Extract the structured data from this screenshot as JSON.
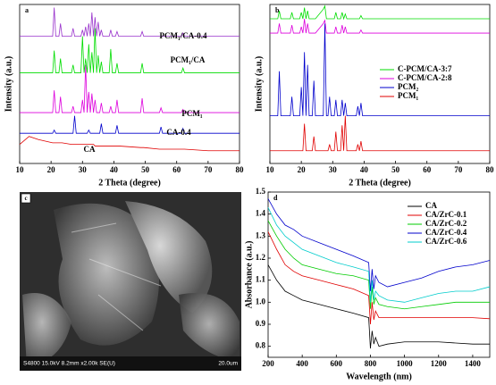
{
  "chart_data": [
    {
      "type": "line",
      "panel": "a",
      "x_label": "2 Theta (degree)",
      "y_label": "Intensity (a.u.)",
      "xlim": [
        10,
        80
      ],
      "xticks": [
        10,
        20,
        30,
        40,
        50,
        60,
        70,
        80
      ],
      "ylim": [
        0,
        100
      ],
      "x": [
        10,
        13,
        16,
        20.5,
        21,
        21.5,
        22.5,
        23,
        23.5,
        26.5,
        27,
        27.5,
        28,
        29.5,
        30,
        30.5,
        31,
        31.5,
        32,
        32.5,
        33,
        33.5,
        34,
        34.5,
        35,
        35.5,
        36,
        36.5,
        38.5,
        39,
        39.5,
        40.5,
        41,
        41.5,
        48.5,
        49,
        49.5,
        54.5,
        55,
        55.5,
        61.5,
        62,
        62.5,
        70,
        80
      ],
      "series": [
        {
          "name": "CA",
          "color": "#e00000",
          "values": [
            12,
            17,
            15,
            13,
            13,
            13,
            13,
            13,
            13,
            12,
            12,
            12,
            12,
            12,
            12,
            12,
            12,
            12,
            12,
            12,
            12,
            12,
            11,
            11,
            11,
            11,
            11,
            11,
            11,
            11,
            11,
            11,
            11,
            11,
            10,
            10,
            10,
            9,
            9,
            9,
            9,
            9,
            9,
            8,
            8
          ]
        },
        {
          "name": "CA-0.4",
          "color": "#0000cc",
          "values": [
            19,
            19,
            19,
            19,
            21,
            19,
            19,
            19,
            19,
            19,
            19,
            30,
            19,
            19,
            19,
            19,
            19,
            19,
            21,
            19,
            19,
            19,
            19,
            19,
            19,
            19,
            25,
            19,
            19,
            19,
            19,
            19,
            24,
            19,
            19,
            19,
            19,
            19,
            23,
            19,
            19,
            22,
            19,
            19,
            19
          ]
        },
        {
          "name": "PCM₁",
          "color": "#dd00dd",
          "values": [
            32,
            32,
            32,
            32,
            46,
            32,
            32,
            42,
            32,
            32,
            36,
            32,
            32,
            32,
            40,
            32,
            62,
            32,
            45,
            32,
            44,
            32,
            40,
            32,
            32,
            32,
            38,
            32,
            32,
            36,
            32,
            32,
            40,
            32,
            32,
            41,
            32,
            32,
            35,
            32,
            32,
            34,
            32,
            32,
            32
          ]
        },
        {
          "name": "PCM₁/CA",
          "color": "#00dd00",
          "values": [
            57,
            57,
            57,
            57,
            71,
            57,
            57,
            66,
            57,
            57,
            62,
            57,
            57,
            57,
            80,
            57,
            66,
            57,
            75,
            57,
            70,
            57,
            85,
            57,
            68,
            57,
            64,
            57,
            57,
            72,
            57,
            57,
            63,
            57,
            57,
            63,
            57,
            57,
            57,
            57,
            57,
            60,
            57,
            57,
            57
          ]
        },
        {
          "name": "PCM₁/CA-0.4",
          "color": "#9933cc",
          "values": [
            80,
            80,
            80,
            80,
            98,
            80,
            80,
            88,
            80,
            80,
            85,
            80,
            80,
            80,
            84,
            80,
            86,
            80,
            88,
            80,
            95,
            80,
            92,
            80,
            89,
            80,
            84,
            80,
            80,
            84,
            80,
            80,
            83,
            80,
            80,
            83,
            80,
            80,
            80,
            80,
            80,
            82,
            80,
            80,
            80
          ]
        }
      ]
    },
    {
      "type": "line",
      "panel": "b",
      "x_label": "2 Theta (degree)",
      "y_label": "Intensity (a.u.)",
      "xlim": [
        10,
        80
      ],
      "xticks": [
        10,
        20,
        30,
        40,
        50,
        60,
        70,
        80
      ],
      "ylim": [
        0,
        100
      ],
      "x": [
        10,
        12.5,
        13,
        13.5,
        16.5,
        17,
        17.5,
        19.5,
        20,
        20.5,
        21,
        21.5,
        22,
        22.5,
        23.5,
        24,
        24.5,
        27,
        27.5,
        28,
        28.5,
        29,
        29.5,
        30.5,
        31,
        31.5,
        32.5,
        33,
        33.5,
        34,
        34.5,
        37.5,
        38,
        38.5,
        39,
        39.5,
        50,
        60,
        70,
        80
      ],
      "series": [
        {
          "name": "C-PCM/CA-3:7",
          "color": "#00dd00",
          "values": [
            91,
            91,
            96,
            91,
            91,
            95,
            91,
            91,
            95,
            91,
            98,
            91,
            96,
            91,
            91,
            91,
            91,
            97,
            99,
            91,
            91,
            91,
            91,
            91,
            95,
            91,
            91,
            95,
            91,
            94,
            91,
            91,
            91,
            91,
            93,
            91,
            91,
            91,
            91,
            91
          ]
        },
        {
          "name": "C-PCM/CA-2:8",
          "color": "#dd00dd",
          "values": [
            82,
            82,
            88,
            82,
            82,
            87,
            82,
            82,
            86,
            82,
            91,
            82,
            88,
            82,
            82,
            82,
            82,
            88,
            90,
            82,
            82,
            82,
            82,
            82,
            86,
            82,
            82,
            87,
            82,
            86,
            82,
            82,
            82,
            82,
            84,
            82,
            82,
            82,
            82,
            82
          ]
        },
        {
          "name": "PCM₂",
          "color": "#0000cc",
          "values": [
            30,
            30,
            58,
            30,
            30,
            42,
            30,
            30,
            48,
            30,
            70,
            30,
            62,
            30,
            30,
            52,
            30,
            30,
            88,
            30,
            30,
            42,
            30,
            30,
            40,
            30,
            30,
            40,
            30,
            38,
            30,
            30,
            36,
            30,
            38,
            30,
            30,
            30,
            30,
            30
          ]
        },
        {
          "name": "PCM₁",
          "color": "#e00000",
          "values": [
            8,
            8,
            8,
            8,
            8,
            8,
            8,
            8,
            8,
            8,
            25,
            8,
            8,
            8,
            8,
            17,
            8,
            8,
            8,
            8,
            8,
            12,
            8,
            8,
            20,
            8,
            8,
            24,
            8,
            30,
            8,
            8,
            12,
            8,
            14,
            8,
            8,
            8,
            8,
            8
          ]
        }
      ]
    },
    {
      "type": "line",
      "panel": "d",
      "x_label": "Wavelength (nm)",
      "y_label": "Absorbance (a.u.)",
      "xlim": [
        200,
        1500
      ],
      "xticks": [
        200,
        400,
        600,
        800,
        1000,
        1200,
        1400
      ],
      "ylim": [
        0.75,
        1.5
      ],
      "yticks": [
        0.8,
        0.9,
        {
          "value": 1,
          "label": "1.0"
        },
        1.1,
        1.2,
        1.3,
        1.4,
        1.5
      ],
      "x": [
        200,
        250,
        300,
        350,
        400,
        500,
        600,
        700,
        790,
        800,
        810,
        820,
        830,
        850,
        900,
        1000,
        1100,
        1200,
        1300,
        1400,
        1500
      ],
      "series": [
        {
          "name": "CA",
          "color": "#000000",
          "values": [
            1.17,
            1.1,
            1.05,
            1.03,
            1.01,
            0.99,
            0.97,
            0.95,
            0.93,
            0.79,
            0.87,
            0.81,
            0.84,
            0.8,
            0.81,
            0.82,
            0.82,
            0.82,
            0.815,
            0.81,
            0.81
          ]
        },
        {
          "name": "CA/ZrC-0.1",
          "color": "#e00000",
          "values": [
            1.32,
            1.24,
            1.17,
            1.14,
            1.12,
            1.1,
            1.08,
            1.06,
            1.03,
            0.9,
            1.0,
            0.92,
            0.96,
            0.93,
            0.93,
            0.93,
            0.93,
            0.93,
            0.93,
            0.93,
            0.925
          ]
        },
        {
          "name": "CA/ZrC-0.2",
          "color": "#00cc00",
          "values": [
            1.37,
            1.3,
            1.24,
            1.2,
            1.17,
            1.15,
            1.13,
            1.12,
            1.1,
            0.97,
            1.07,
            0.99,
            1.02,
            0.99,
            0.98,
            0.97,
            0.98,
            0.99,
            1.0,
            1.0,
            1.0
          ]
        },
        {
          "name": "CA/ZrC-0.4",
          "color": "#0000cc",
          "values": [
            1.47,
            1.4,
            1.35,
            1.33,
            1.3,
            1.27,
            1.24,
            1.21,
            1.18,
            1.05,
            1.15,
            1.06,
            1.12,
            1.09,
            1.07,
            1.09,
            1.11,
            1.14,
            1.16,
            1.17,
            1.19
          ]
        },
        {
          "name": "CA/ZrC-0.6",
          "color": "#00cccc",
          "values": [
            1.43,
            1.35,
            1.3,
            1.27,
            1.24,
            1.21,
            1.18,
            1.16,
            1.14,
            1.0,
            1.1,
            1.01,
            1.05,
            1.03,
            1.01,
            1.0,
            1.02,
            1.04,
            1.05,
            1.05,
            1.07
          ]
        }
      ]
    }
  ],
  "image": {
    "panel": "c",
    "caption": "S4800 15.0kV 8.2mm x2.00k SE(U)",
    "scale": "20.0um"
  }
}
